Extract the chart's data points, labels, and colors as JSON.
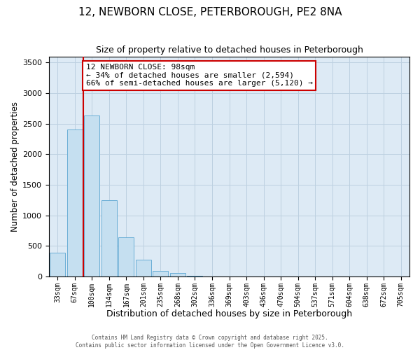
{
  "title": "12, NEWBORN CLOSE, PETERBOROUGH, PE2 8NA",
  "subtitle": "Size of property relative to detached houses in Peterborough",
  "xlabel": "Distribution of detached houses by size in Peterborough",
  "ylabel": "Number of detached properties",
  "bar_labels": [
    "33sqm",
    "67sqm",
    "100sqm",
    "134sqm",
    "167sqm",
    "201sqm",
    "235sqm",
    "268sqm",
    "302sqm",
    "336sqm",
    "369sqm",
    "403sqm",
    "436sqm",
    "470sqm",
    "504sqm",
    "537sqm",
    "571sqm",
    "604sqm",
    "638sqm",
    "672sqm",
    "705sqm"
  ],
  "bar_values": [
    390,
    2400,
    2630,
    1250,
    640,
    270,
    95,
    55,
    15,
    5,
    2,
    0,
    0,
    0,
    0,
    0,
    0,
    0,
    0,
    0,
    0
  ],
  "bar_color": "#c5dff0",
  "bar_edge_color": "#6aaed6",
  "vline_x_index": 2,
  "vline_color": "#cc0000",
  "annotation_box_edge": "#cc0000",
  "annotation_line1": "12 NEWBORN CLOSE: 98sqm",
  "annotation_line2": "← 34% of detached houses are smaller (2,594)",
  "annotation_line3": "66% of semi-detached houses are larger (5,120) →",
  "ylim": [
    0,
    3600
  ],
  "yticks": [
    0,
    500,
    1000,
    1500,
    2000,
    2500,
    3000,
    3500
  ],
  "bg_color": "#ffffff",
  "plot_bg_color": "#ddeaf5",
  "grid_color": "#bdd0e0",
  "footer1": "Contains HM Land Registry data © Crown copyright and database right 2025.",
  "footer2": "Contains public sector information licensed under the Open Government Licence v3.0."
}
